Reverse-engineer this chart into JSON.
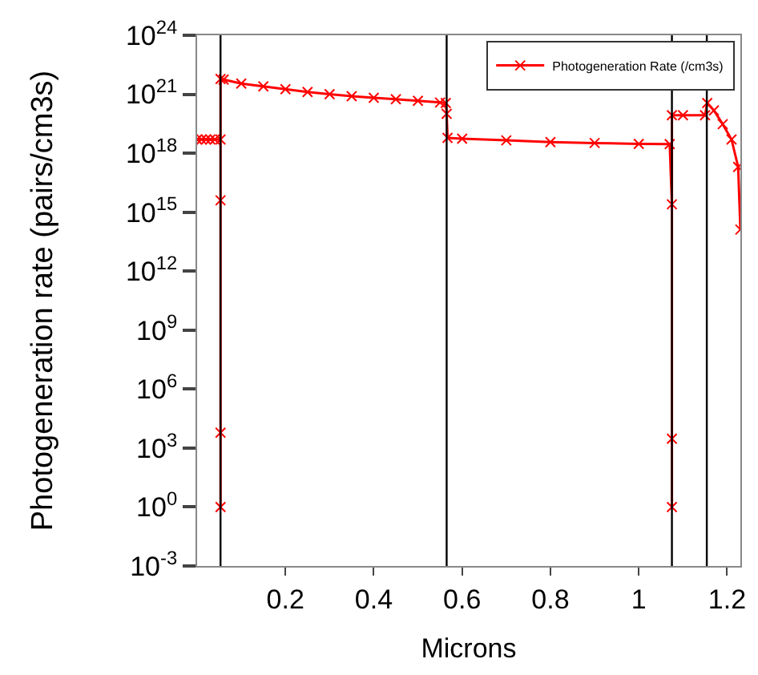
{
  "chart_data": {
    "type": "line",
    "xlabel": "Microns",
    "ylabel": "Photogeneration rate (pairs/cm3s)",
    "log": "y",
    "legend": "top right",
    "marker": "cross",
    "line_style": "solid",
    "xlim": [
      0,
      1.23
    ],
    "xticks": [
      {
        "value": 0.2,
        "label": "0.2"
      },
      {
        "value": 0.4,
        "label": "0.4"
      },
      {
        "value": 0.6,
        "label": "0.6"
      },
      {
        "value": 0.8,
        "label": "0.8"
      },
      {
        "value": 1,
        "label": "1"
      },
      {
        "value": 1.2,
        "label": "1.2"
      }
    ],
    "ylim": [
      0.001,
      1e+24
    ],
    "yticks": [
      {
        "value": 0.001,
        "label": "10$^{-3}$"
      },
      {
        "value": 1,
        "label": "10$^{0}$"
      },
      {
        "value": 1000,
        "label": "10$^{3}$"
      },
      {
        "value": 1000000.0,
        "label": "10$^{6}$"
      },
      {
        "value": 1000000000.0,
        "label": "10$^{9}$"
      },
      {
        "value": 1000000000000.0,
        "label": "10$^{12}$"
      },
      {
        "value": 1000000000000000.0,
        "label": "10$^{15}$"
      },
      {
        "value": 1e+18,
        "label": "10$^{18}$"
      },
      {
        "value": 1e+21,
        "label": "10$^{21}$"
      },
      {
        "value": 1e+24,
        "label": "10$^{24}$"
      }
    ],
    "ref_lines": [
      {
        "axis": "x",
        "value": 0.053,
        "color": "#000000"
      },
      {
        "axis": "x",
        "value": 0.565,
        "color": "#000000"
      },
      {
        "axis": "x",
        "value": 1.075,
        "color": "#000000"
      },
      {
        "axis": "x",
        "value": 1.154,
        "color": "#000000"
      }
    ],
    "series": [
      {
        "name": "Photogeneration Rate (/cm3s)",
        "color": "#ff0000",
        "x": [
          0.0,
          0.01,
          0.02,
          0.03,
          0.04,
          0.053,
          0.053,
          0.053,
          0.053,
          0.053,
          0.06,
          0.1,
          0.15,
          0.2,
          0.25,
          0.3,
          0.35,
          0.4,
          0.45,
          0.5,
          0.55,
          0.563,
          0.565,
          0.567,
          0.6,
          0.7,
          0.8,
          0.9,
          1.0,
          1.07,
          1.075,
          1.075,
          1.075,
          1.075,
          1.1,
          1.15,
          1.155,
          1.17,
          1.19,
          1.21,
          1.225,
          1.23
        ],
        "values": [
          5e+18,
          5e+18,
          5e+18,
          5e+18,
          5e+18,
          5e+18,
          4000000000000000.0,
          6000.0,
          1,
          6e+21,
          5.6e+21,
          3.5e+21,
          2.5e+21,
          1.8e+21,
          1.3e+21,
          1e+21,
          8e+20,
          6.6e+20,
          5.6e+20,
          4.6e+20,
          3.8e+20,
          3.6e+20,
          1e+20,
          6e+18,
          5.5e+18,
          4.5e+18,
          3.7e+18,
          3.3e+18,
          3e+18,
          2.9e+18,
          2500000000000000.0,
          3000.0,
          1,
          8.5e+19,
          8.5e+19,
          8.5e+19,
          3.6e+20,
          1.5e+20,
          3e+19,
          5e+18,
          2e+17,
          130000000000000.0
        ]
      }
    ]
  }
}
